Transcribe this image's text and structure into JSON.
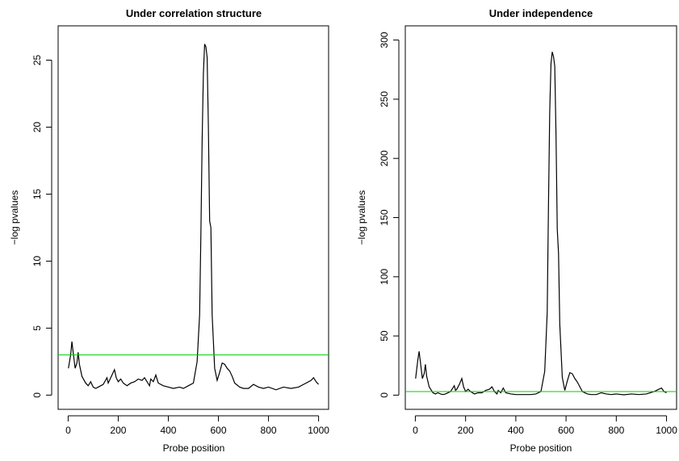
{
  "chart_data": [
    {
      "type": "line",
      "title": "Under correlation structure",
      "xlabel": "Probe position",
      "ylabel": "−log pvalues",
      "xlim": [
        0,
        1000
      ],
      "ylim": [
        0,
        26.5
      ],
      "xticks": [
        0,
        200,
        400,
        600,
        800,
        1000
      ],
      "yticks": [
        0,
        5,
        10,
        15,
        20,
        25
      ],
      "threshold": {
        "y": 3.0,
        "color": "#00cc00"
      },
      "series": [
        {
          "color": "#000000",
          "x": [
            1,
            10,
            15,
            20,
            28,
            35,
            40,
            45,
            55,
            70,
            80,
            90,
            100,
            110,
            120,
            140,
            155,
            160,
            165,
            175,
            185,
            192,
            200,
            210,
            220,
            235,
            250,
            265,
            280,
            295,
            305,
            315,
            325,
            330,
            340,
            350,
            360,
            380,
            400,
            420,
            445,
            460,
            480,
            500,
            515,
            525,
            530,
            535,
            540,
            545,
            550,
            555,
            560,
            565,
            570,
            575,
            585,
            595,
            605,
            615,
            625,
            635,
            645,
            655,
            665,
            685,
            700,
            720,
            740,
            760,
            780,
            800,
            830,
            860,
            890,
            920,
            950,
            970,
            980,
            990,
            1000
          ],
          "y": [
            2.0,
            3.0,
            4.0,
            3.2,
            2.0,
            2.4,
            3.2,
            2.3,
            1.4,
            0.9,
            0.7,
            1.0,
            0.6,
            0.5,
            0.6,
            0.8,
            1.3,
            0.9,
            1.1,
            1.5,
            1.9,
            1.3,
            1.0,
            1.2,
            0.9,
            0.7,
            0.9,
            1.0,
            1.2,
            1.1,
            1.3,
            1.0,
            0.7,
            1.2,
            1.0,
            1.5,
            0.9,
            0.7,
            0.6,
            0.5,
            0.6,
            0.5,
            0.7,
            0.9,
            2.5,
            6.0,
            12.0,
            19.0,
            24.0,
            26.2,
            26.0,
            25.2,
            20.0,
            13.0,
            12.5,
            6.0,
            2.0,
            1.1,
            1.7,
            2.4,
            2.3,
            2.0,
            1.8,
            1.4,
            0.9,
            0.6,
            0.5,
            0.5,
            0.8,
            0.6,
            0.5,
            0.6,
            0.4,
            0.6,
            0.5,
            0.6,
            0.9,
            1.1,
            1.3,
            1.0,
            0.8
          ]
        }
      ]
    },
    {
      "type": "line",
      "title": "Under independence",
      "xlabel": "Probe position",
      "ylabel": "−log pvalues",
      "xlim": [
        0,
        1000
      ],
      "ylim": [
        0,
        300
      ],
      "xticks": [
        0,
        200,
        400,
        600,
        800,
        1000
      ],
      "yticks": [
        0,
        50,
        100,
        150,
        200,
        250,
        300
      ],
      "threshold": {
        "y": 3.0,
        "color": "#00cc00"
      },
      "series": [
        {
          "color": "#000000",
          "x": [
            1,
            10,
            15,
            20,
            28,
            35,
            40,
            45,
            55,
            70,
            80,
            90,
            100,
            110,
            120,
            140,
            155,
            160,
            165,
            175,
            185,
            192,
            200,
            210,
            220,
            235,
            250,
            265,
            280,
            295,
            305,
            315,
            325,
            330,
            340,
            350,
            360,
            380,
            400,
            420,
            445,
            460,
            480,
            500,
            515,
            525,
            530,
            535,
            540,
            545,
            550,
            555,
            560,
            565,
            570,
            575,
            585,
            595,
            605,
            615,
            625,
            635,
            645,
            655,
            665,
            685,
            700,
            720,
            740,
            760,
            780,
            800,
            830,
            860,
            890,
            920,
            950,
            970,
            980,
            990,
            1000
          ],
          "y": [
            14,
            30,
            37,
            28,
            14,
            18,
            26,
            16,
            7,
            2,
            1,
            2,
            1,
            0.5,
            1,
            3,
            8,
            4,
            5,
            9,
            14,
            7,
            3,
            5,
            3,
            1,
            2,
            2,
            4,
            5,
            7,
            3,
            1,
            4,
            2,
            6,
            2,
            1,
            0.5,
            0.5,
            0.5,
            0.5,
            1,
            3,
            20,
            70,
            160,
            240,
            280,
            290,
            286,
            278,
            220,
            140,
            120,
            60,
            15,
            4,
            12,
            19,
            18,
            14,
            11,
            7,
            3,
            1,
            0.5,
            0.5,
            2,
            1,
            0.5,
            1,
            0.3,
            1,
            0.5,
            1,
            3,
            5,
            6,
            3,
            2
          ]
        }
      ]
    }
  ]
}
